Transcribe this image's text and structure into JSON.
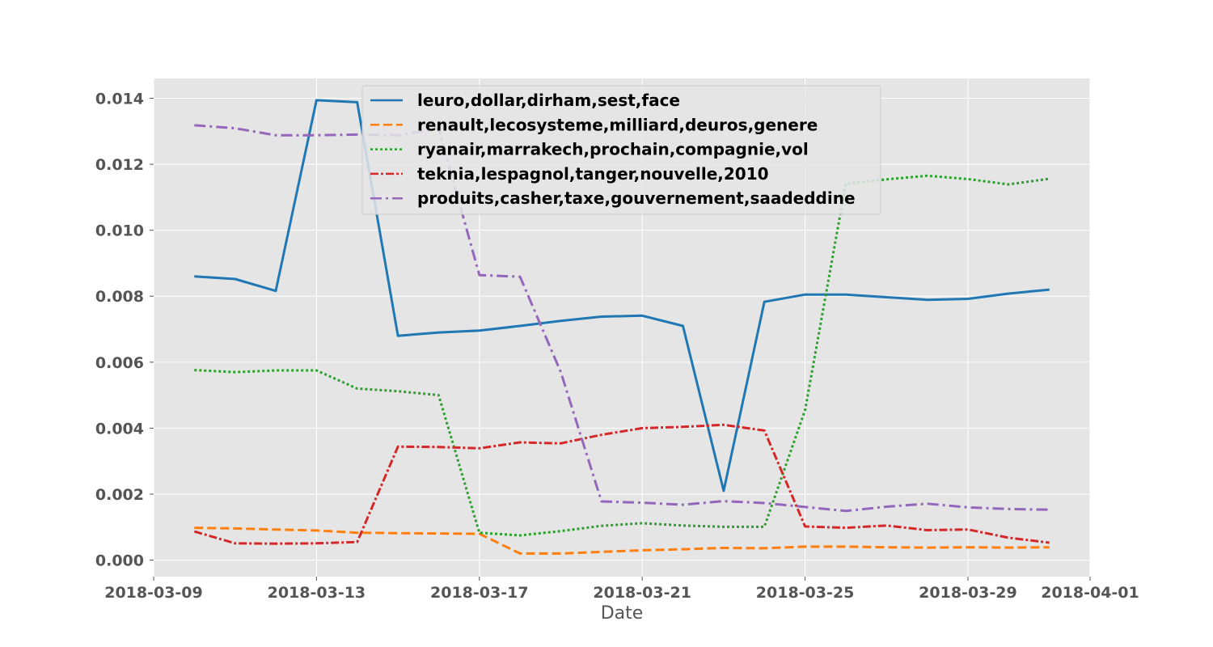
{
  "chart_data": {
    "type": "line",
    "xlabel": "Date",
    "ylabel": "",
    "title": "",
    "x_axis_type": "date",
    "xlim": [
      "2018-03-09",
      "2018-04-01"
    ],
    "ylim": [
      -0.0005,
      0.0146
    ],
    "x_ticks": [
      "2018-03-09",
      "2018-03-13",
      "2018-03-17",
      "2018-03-21",
      "2018-03-25",
      "2018-03-29",
      "2018-04-01"
    ],
    "y_ticks": [
      "0.000",
      "0.002",
      "0.004",
      "0.006",
      "0.008",
      "0.010",
      "0.012",
      "0.014"
    ],
    "grid": true,
    "legend_position": "top-center",
    "x": [
      "2018-03-10",
      "2018-03-11",
      "2018-03-12",
      "2018-03-13",
      "2018-03-14",
      "2018-03-15",
      "2018-03-16",
      "2018-03-17",
      "2018-03-18",
      "2018-03-19",
      "2018-03-20",
      "2018-03-21",
      "2018-03-22",
      "2018-03-23",
      "2018-03-24",
      "2018-03-25",
      "2018-03-26",
      "2018-03-27",
      "2018-03-28",
      "2018-03-29",
      "2018-03-30",
      "2018-03-31"
    ],
    "series": [
      {
        "name": "leuro,dollar,dirham,sest,face",
        "color": "#1f77b4",
        "style": "solid",
        "values": [
          0.0086,
          0.00852,
          0.00816,
          0.01394,
          0.01388,
          0.0068,
          0.0069,
          0.00696,
          0.0071,
          0.00725,
          0.00738,
          0.00741,
          0.0071,
          0.0021,
          0.00783,
          0.00805,
          0.00805,
          0.00797,
          0.00789,
          0.00792,
          0.00808,
          0.0082
        ]
      },
      {
        "name": "renault,lecosysteme,milliard,deuros,genere",
        "color": "#ff7f0e",
        "style": "dashed",
        "values": [
          0.00098,
          0.00096,
          0.00093,
          0.0009,
          0.00083,
          0.00082,
          0.00081,
          0.0008,
          0.0002,
          0.0002,
          0.00025,
          0.0003,
          0.00033,
          0.00037,
          0.00036,
          0.00041,
          0.00041,
          0.00039,
          0.00038,
          0.00039,
          0.00038,
          0.00039
        ]
      },
      {
        "name": "ryanair,marrakech,prochain,compagnie,vol",
        "color": "#2ca02c",
        "style": "dotted",
        "values": [
          0.00576,
          0.0057,
          0.00575,
          0.00575,
          0.0052,
          0.00512,
          0.005,
          0.00083,
          0.00075,
          0.00088,
          0.00104,
          0.00112,
          0.00105,
          0.00101,
          0.00101,
          0.00455,
          0.01141,
          0.01154,
          0.01165,
          0.01155,
          0.01139,
          0.01156
        ]
      },
      {
        "name": "teknia,lespagnol,tanger,nouvelle,2010",
        "color": "#d62728",
        "style": "dashdot-dense",
        "values": [
          0.00087,
          0.00051,
          0.0005,
          0.00051,
          0.00055,
          0.00344,
          0.00343,
          0.00339,
          0.00357,
          0.00354,
          0.0038,
          0.004,
          0.00404,
          0.0041,
          0.00393,
          0.00102,
          0.00098,
          0.00105,
          0.00091,
          0.00093,
          0.00068,
          0.00053
        ]
      },
      {
        "name": "produits,casher,taxe,gouvernement,saadeddine",
        "color": "#9467bd",
        "style": "dashdot",
        "values": [
          0.01318,
          0.01309,
          0.01288,
          0.01288,
          0.0129,
          0.01288,
          0.01308,
          0.00864,
          0.00859,
          0.0057,
          0.00178,
          0.00174,
          0.00168,
          0.00179,
          0.00173,
          0.00161,
          0.00149,
          0.00162,
          0.00171,
          0.0016,
          0.00155,
          0.00153
        ]
      }
    ]
  }
}
